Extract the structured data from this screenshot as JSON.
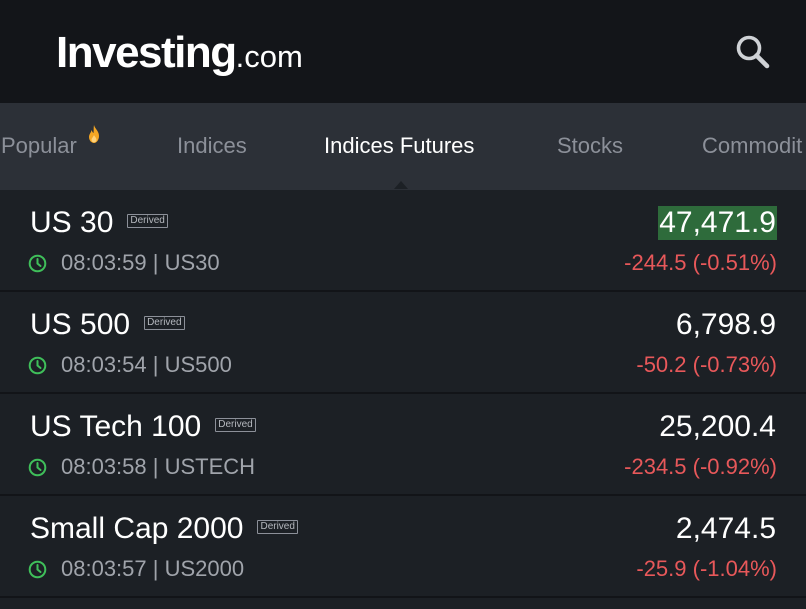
{
  "header": {
    "logo_brand": "Investing",
    "logo_tld": ".com",
    "search_icon": "search-icon"
  },
  "tabs": [
    {
      "label": "Popular",
      "icon": "fire-icon",
      "active": false
    },
    {
      "label": "Indices",
      "active": false
    },
    {
      "label": "Indices Futures",
      "active": true
    },
    {
      "label": "Stocks",
      "active": false
    },
    {
      "label": "Commodit",
      "active": false
    }
  ],
  "rows": [
    {
      "name": "US 30",
      "badge": "Derived",
      "time": "08:03:59 | US30",
      "price": "47,471.9",
      "change": "-244.5 (-0.51%)",
      "price_highlight": true
    },
    {
      "name": "US 500",
      "badge": "Derived",
      "time": "08:03:54 | US500",
      "price": "6,798.9",
      "change": "-50.2 (-0.73%)"
    },
    {
      "name": "US Tech 100",
      "badge": "Derived",
      "time": "08:03:58 | USTECH",
      "price": "25,200.4",
      "change": "-234.5 (-0.92%)"
    },
    {
      "name": "Small Cap 2000",
      "badge": "Derived",
      "time": "08:03:57 | US2000",
      "price": "2,474.5",
      "change": "-25.9 (-1.04%)"
    }
  ],
  "colors": {
    "header_bg": "#131519",
    "tabs_bg": "#2c3037",
    "list_bg": "#1c2025",
    "negative": "#e8585a",
    "flash_up": "#2e6b3b",
    "clock": "#3fbf5a",
    "fire": "#f5a623"
  }
}
